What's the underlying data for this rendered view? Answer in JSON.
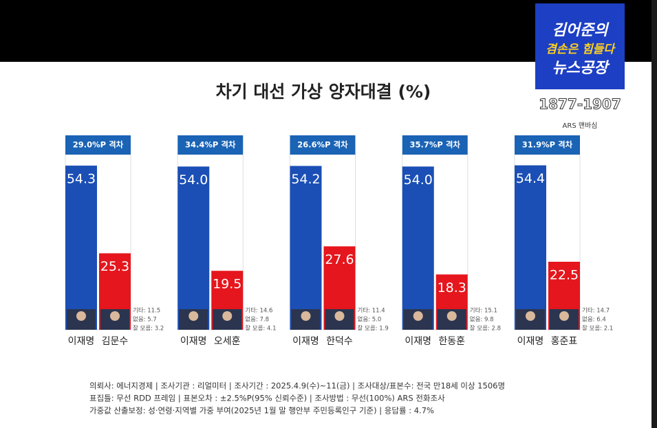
{
  "title": "차기 대선 가상 양자대결 (%)",
  "logo": {
    "line1": "김어준의",
    "line2": "겸손은 힘들다",
    "line3": "뉴스공장",
    "phone": "1877-1907",
    "caption": "ARS 맨바심"
  },
  "footnotes": [
    "의뢰사: 에너지경제 | 조사기관 : 리얼미터  |  조사기간 : 2025.4.9(수)~11(금) | 조사대상/표본수: 전국 만18세 이상 1506명",
    "표집틀: 무선 RDD 프레임 | 표본오차 : ±2.5%P(95% 신뢰수준) | 조사방법 : 무선(100%) ARS 전화조사",
    "가중값 산출보정: 성·연령·지역별 가중 부여(2025년 1월 말 행안부 주민등록인구 기준) | 응답률 : 4.7%"
  ],
  "chart_data": [
    {
      "type": "bar",
      "gap_label": "29.0%P 격차",
      "categories": [
        "이재명",
        "김문수"
      ],
      "values": [
        54.3,
        25.3
      ],
      "value_labels": [
        "54.3",
        "25.3"
      ],
      "colors": [
        "#1b4fb5",
        "#e5161d"
      ],
      "notes": [
        "기타: 11.5",
        "없음: 5.7",
        "잘 모름: 3.2"
      ]
    },
    {
      "type": "bar",
      "gap_label": "34.4%P 격차",
      "categories": [
        "이재명",
        "오세훈"
      ],
      "values": [
        54.0,
        19.5
      ],
      "value_labels": [
        "54.0",
        "19.5"
      ],
      "colors": [
        "#1b4fb5",
        "#e5161d"
      ],
      "notes": [
        "기타: 14.6",
        "없음: 7.8",
        "잘 모름: 4.1"
      ]
    },
    {
      "type": "bar",
      "gap_label": "26.6%P 격차",
      "categories": [
        "이재명",
        "한덕수"
      ],
      "values": [
        54.2,
        27.6
      ],
      "value_labels": [
        "54.2",
        "27.6"
      ],
      "colors": [
        "#1b4fb5",
        "#e5161d"
      ],
      "notes": [
        "기타: 11.4",
        "없음: 5.0",
        "잘 모름: 1.9"
      ]
    },
    {
      "type": "bar",
      "gap_label": "35.7%P 격차",
      "categories": [
        "이재명",
        "한동훈"
      ],
      "values": [
        54.0,
        18.3
      ],
      "value_labels": [
        "54.0",
        "18.3"
      ],
      "colors": [
        "#1b4fb5",
        "#e5161d"
      ],
      "notes": [
        "기타: 15.1",
        "없음: 9.8",
        "잘 모름: 2.8"
      ]
    },
    {
      "type": "bar",
      "gap_label": "31.9%P 격차",
      "categories": [
        "이재명",
        "홍준표"
      ],
      "values": [
        54.4,
        22.5
      ],
      "value_labels": [
        "54.4",
        "22.5"
      ],
      "colors": [
        "#1b4fb5",
        "#e5161d"
      ],
      "notes": [
        "기타: 14.7",
        "없음: 6.4",
        "잘 모름: 2.1"
      ]
    }
  ]
}
